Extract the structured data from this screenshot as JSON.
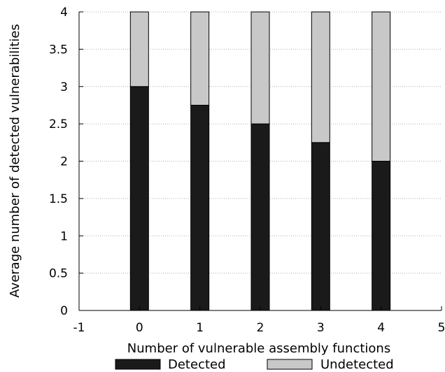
{
  "chart_data": {
    "type": "bar",
    "stacked": true,
    "categories": [
      "0",
      "1",
      "2",
      "3",
      "4"
    ],
    "x": [
      0,
      1,
      2,
      3,
      4
    ],
    "series": [
      {
        "name": "Detected",
        "color": "#1a1a1a",
        "values": [
          3.0,
          2.75,
          2.5,
          2.25,
          2.0
        ]
      },
      {
        "name": "Undetected",
        "color": "#c8c8c8",
        "values": [
          1.0,
          1.25,
          1.5,
          1.75,
          2.0
        ]
      }
    ],
    "xlabel": "Number of vulnerable assembly functions",
    "ylabel": "Average number of detected vulnerabilities",
    "xlim": [
      -1,
      5
    ],
    "ylim": [
      0,
      4
    ],
    "xticks": [
      "-1",
      "0",
      "1",
      "2",
      "3",
      "4",
      "5"
    ],
    "yticks": [
      "0",
      "0.5",
      "1",
      "1.5",
      "2",
      "2.5",
      "3",
      "3.5",
      "4"
    ],
    "grid": "horizontal-dotted",
    "legend_position": "bottom"
  }
}
